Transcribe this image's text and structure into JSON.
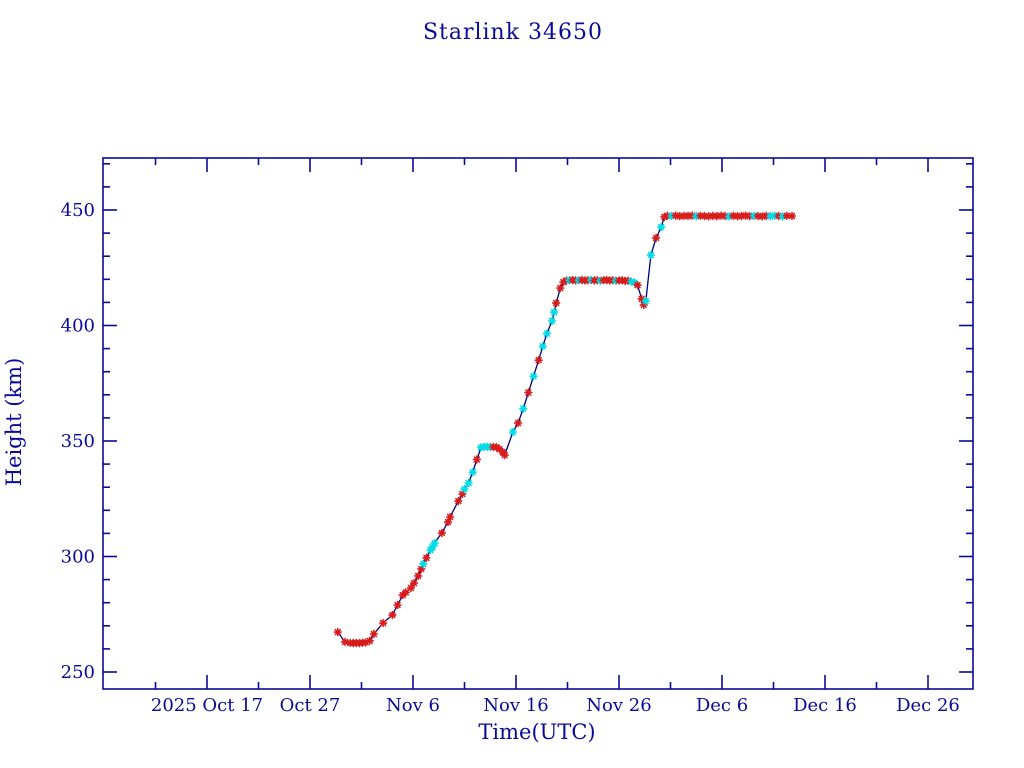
{
  "page": {
    "background": "#ffffff"
  },
  "chart_data": {
    "type": "line",
    "title": "Starlink 34650",
    "xlabel": "Time(UTC)",
    "ylabel": "Height (km)",
    "legend": "none",
    "grid": false,
    "x_unit": "days since 2025 Oct 17 00:00 UTC",
    "x_axis": {
      "major_tick_days": [
        0,
        10,
        20,
        30,
        40,
        50,
        60,
        70
      ],
      "major_tick_labels": [
        "2025 Oct 17",
        "Oct 27",
        "Nov 6",
        "Nov 16",
        "Nov 26",
        "Dec 6",
        "Dec 16",
        "Dec 26"
      ],
      "minor_tick_days": [
        -5,
        5,
        15,
        25,
        35,
        45,
        55,
        65
      ],
      "range_days": [
        -10.1,
        74.4
      ]
    },
    "y_axis": {
      "major_ticks": [
        250,
        300,
        350,
        400,
        450
      ],
      "major_tick_labels": [
        "250",
        "300",
        "350",
        "400",
        "450"
      ],
      "minor_step": 10,
      "range": [
        242.5,
        472.5
      ]
    },
    "colors": {
      "axis_and_text": "#0a0a99",
      "line": "#000080",
      "marker_red": "#d81c1c",
      "marker_cyan": "#00dce6",
      "background": "#ffffff"
    },
    "marker_colors": [
      "#d81c1c",
      "#00dce6"
    ],
    "marker_style": "asterisk",
    "points_format": [
      "day_since_Oct17",
      "height_km",
      "color_index_0red_1cyan"
    ],
    "points": [
      [
        12.7,
        267.3,
        0
      ],
      [
        13.4,
        263.0,
        0
      ],
      [
        13.9,
        262.6,
        0
      ],
      [
        14.2,
        262.5,
        0
      ],
      [
        14.5,
        262.6,
        0
      ],
      [
        14.8,
        262.5,
        0
      ],
      [
        15.1,
        262.7,
        0
      ],
      [
        15.4,
        262.8,
        0
      ],
      [
        15.8,
        263.5,
        0
      ],
      [
        16.2,
        266.5,
        0
      ],
      [
        17.1,
        271.2,
        0
      ],
      [
        18.0,
        274.7,
        0
      ],
      [
        18.5,
        279.0,
        0
      ],
      [
        19.0,
        283.3,
        0
      ],
      [
        19.3,
        284.5,
        0
      ],
      [
        19.8,
        286.4,
        0
      ],
      [
        20.1,
        288.5,
        0
      ],
      [
        20.5,
        291.6,
        0
      ],
      [
        20.8,
        294.6,
        0
      ],
      [
        21.0,
        296.8,
        1
      ],
      [
        21.3,
        299.4,
        0
      ],
      [
        21.7,
        302.8,
        1
      ],
      [
        21.9,
        304.1,
        1
      ],
      [
        22.1,
        305.8,
        1
      ],
      [
        22.8,
        310.2,
        0
      ],
      [
        23.4,
        314.9,
        0
      ],
      [
        23.6,
        317.1,
        0
      ],
      [
        24.4,
        324.0,
        0
      ],
      [
        24.8,
        327.1,
        0
      ],
      [
        25.0,
        329.2,
        1
      ],
      [
        25.4,
        331.8,
        1
      ],
      [
        25.8,
        336.5,
        1
      ],
      [
        26.2,
        342.0,
        0
      ],
      [
        26.6,
        347.2,
        1
      ],
      [
        26.9,
        347.5,
        1
      ],
      [
        27.2,
        347.5,
        1
      ],
      [
        27.5,
        347.4,
        1
      ],
      [
        27.8,
        347.4,
        0
      ],
      [
        28.1,
        347.3,
        0
      ],
      [
        28.4,
        346.5,
        0
      ],
      [
        28.7,
        345.2,
        0
      ],
      [
        28.9,
        343.9,
        0
      ],
      [
        29.7,
        353.9,
        1
      ],
      [
        30.2,
        357.8,
        0
      ],
      [
        30.7,
        364.0,
        1
      ],
      [
        31.2,
        371.0,
        0
      ],
      [
        31.7,
        378.0,
        1
      ],
      [
        32.2,
        385.0,
        0
      ],
      [
        32.6,
        391.0,
        1
      ],
      [
        33.0,
        396.5,
        1
      ],
      [
        33.5,
        402.0,
        1
      ],
      [
        33.7,
        405.8,
        1
      ],
      [
        33.9,
        409.7,
        0
      ],
      [
        34.3,
        416.2,
        0
      ],
      [
        34.6,
        418.8,
        0
      ],
      [
        34.9,
        419.5,
        0
      ],
      [
        35.2,
        419.6,
        1
      ],
      [
        35.5,
        419.7,
        0
      ],
      [
        35.8,
        419.5,
        0
      ],
      [
        36.1,
        419.6,
        1
      ],
      [
        36.4,
        419.7,
        0
      ],
      [
        36.7,
        419.5,
        0
      ],
      [
        37.0,
        419.6,
        0
      ],
      [
        37.3,
        419.7,
        1
      ],
      [
        37.6,
        419.5,
        0
      ],
      [
        37.9,
        419.6,
        0
      ],
      [
        38.2,
        419.4,
        1
      ],
      [
        38.5,
        419.6,
        0
      ],
      [
        38.8,
        419.7,
        0
      ],
      [
        39.1,
        419.5,
        0
      ],
      [
        39.4,
        419.6,
        0
      ],
      [
        39.7,
        419.4,
        1
      ],
      [
        40.0,
        419.5,
        0
      ],
      [
        40.3,
        419.6,
        0
      ],
      [
        40.6,
        419.3,
        0
      ],
      [
        40.9,
        419.4,
        0
      ],
      [
        41.2,
        419.0,
        1
      ],
      [
        41.5,
        418.6,
        1
      ],
      [
        41.8,
        417.5,
        0
      ],
      [
        42.2,
        411.5,
        0
      ],
      [
        42.4,
        408.9,
        0
      ],
      [
        42.6,
        410.6,
        1
      ],
      [
        43.1,
        430.5,
        1
      ],
      [
        43.6,
        437.9,
        0
      ],
      [
        44.1,
        442.6,
        1
      ],
      [
        44.4,
        447.0,
        0
      ],
      [
        44.7,
        447.5,
        0
      ],
      [
        45.1,
        447.4,
        1
      ],
      [
        45.5,
        447.6,
        0
      ],
      [
        45.9,
        447.3,
        0
      ],
      [
        46.3,
        447.5,
        0
      ],
      [
        46.7,
        447.4,
        0
      ],
      [
        47.1,
        447.6,
        0
      ],
      [
        47.5,
        447.3,
        1
      ],
      [
        47.9,
        447.5,
        0
      ],
      [
        48.3,
        447.4,
        0
      ],
      [
        48.7,
        447.2,
        0
      ],
      [
        49.1,
        447.5,
        0
      ],
      [
        49.5,
        447.3,
        0
      ],
      [
        49.9,
        447.6,
        0
      ],
      [
        50.3,
        447.4,
        0
      ],
      [
        50.7,
        447.2,
        1
      ],
      [
        51.1,
        447.5,
        0
      ],
      [
        51.5,
        447.3,
        0
      ],
      [
        51.9,
        447.4,
        0
      ],
      [
        52.3,
        447.6,
        0
      ],
      [
        52.7,
        447.3,
        0
      ],
      [
        53.1,
        447.5,
        1
      ],
      [
        53.5,
        447.4,
        0
      ],
      [
        53.9,
        447.2,
        0
      ],
      [
        54.3,
        447.5,
        0
      ],
      [
        54.7,
        447.3,
        1
      ],
      [
        55.1,
        447.6,
        1
      ],
      [
        55.5,
        447.4,
        0
      ],
      [
        55.9,
        447.2,
        1
      ],
      [
        56.3,
        447.5,
        0
      ],
      [
        56.8,
        447.4,
        0
      ]
    ]
  }
}
